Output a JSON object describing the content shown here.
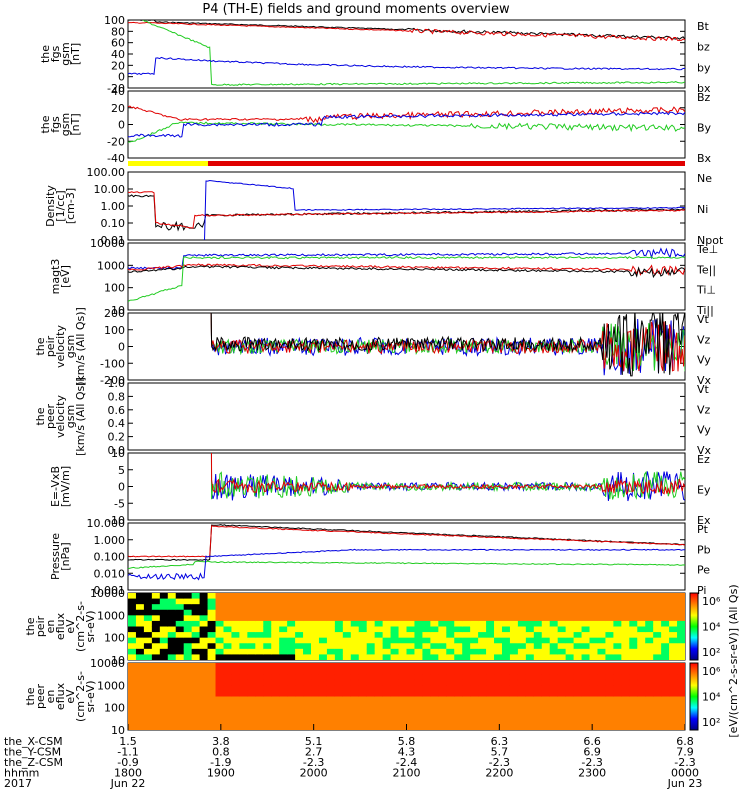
{
  "title": "P4 (TH-E) fields and ground moments overview",
  "colors": {
    "black": "#000000",
    "red": "#e00000",
    "green": "#22cc22",
    "blue": "#0000e0",
    "yellow": "#ffff00"
  },
  "chart_data": {
    "type": "line",
    "time_ticks": [
      "1800",
      "1900",
      "2000",
      "2100",
      "2200",
      "2300",
      "0000"
    ],
    "time_range": [
      "1800",
      "0000"
    ],
    "bottom_rows": [
      {
        "label": "the_X-CSM",
        "values": [
          "1.5",
          "3.8",
          "5.1",
          "5.8",
          "6.3",
          "6.6",
          "6.8"
        ]
      },
      {
        "label": "the_Y-CSM",
        "values": [
          "-1.1",
          "0.8",
          "2.7",
          "4.3",
          "5.7",
          "6.9",
          "7.9"
        ]
      },
      {
        "label": "the_Z-CSM",
        "values": [
          "-0.9",
          "-1.9",
          "-2.3",
          "-2.4",
          "-2.3",
          "-2.3",
          "-2.3"
        ]
      },
      {
        "label": "hhmm",
        "values": [
          "1800",
          "1900",
          "2000",
          "2100",
          "2200",
          "2300",
          "0000"
        ]
      },
      {
        "label": "2017",
        "values": [
          "Jun 22",
          "",
          "",
          "",
          "",
          "",
          "Jun 23"
        ]
      }
    ],
    "panels": [
      {
        "id": "fgs",
        "ylabel": [
          "the",
          "fgs",
          "gsm",
          "[nT]"
        ],
        "ticks": [
          "100",
          "80",
          "60",
          "40",
          "20",
          "0",
          "-20"
        ],
        "legend": [
          {
            "text": "Bt",
            "color": "black"
          },
          {
            "text": "bz",
            "color": "red"
          },
          {
            "text": "by",
            "color": "green"
          },
          {
            "text": "bx",
            "color": "blue"
          }
        ]
      },
      {
        "id": "fgs2",
        "ylabel": [
          "the",
          "fgs",
          "gsm",
          "[nT]"
        ],
        "ticks": [
          "40",
          "20",
          "0",
          "-20",
          "-40"
        ],
        "legend": [
          {
            "text": "Bz",
            "color": "red"
          },
          {
            "text": "By",
            "color": "green"
          },
          {
            "text": "Bx",
            "color": "blue"
          }
        ]
      },
      {
        "id": "density",
        "ylabel": [
          "Density",
          "[1/cc]",
          "[cm-3]"
        ],
        "ticks": [
          "100.00",
          "10.00",
          "1.00",
          "0.10",
          "0.01"
        ],
        "legend": [
          {
            "text": "Ne",
            "color": "red"
          },
          {
            "text": "Ni",
            "color": "black"
          },
          {
            "text": "Npot",
            "color": "blue"
          }
        ]
      },
      {
        "id": "temp",
        "ylabel": [
          "magt3",
          "[eV]"
        ],
        "ticks": [
          "10000",
          "1000",
          "100",
          "10"
        ],
        "legend": [
          {
            "text": "Te⊥",
            "color": "red"
          },
          {
            "text": "Te||",
            "color": "black"
          },
          {
            "text": "Ti⊥",
            "color": "red"
          },
          {
            "text": "Ti||",
            "color": "green"
          }
        ]
      },
      {
        "id": "peir",
        "ylabel": [
          "the",
          "peir",
          "velocity",
          "gsm",
          "[km/s (All Qs)]"
        ],
        "ticks": [
          "200",
          "100",
          "0",
          "-100",
          "-200"
        ],
        "legend": [
          {
            "text": "Vt",
            "color": "black"
          },
          {
            "text": "Vz",
            "color": "red"
          },
          {
            "text": "Vy",
            "color": "green"
          },
          {
            "text": "Vx",
            "color": "blue"
          }
        ]
      },
      {
        "id": "peer",
        "ylabel": [
          "the",
          "peer",
          "velocity",
          "gsm",
          "[km/s (All Qs)]"
        ],
        "ticks": [
          "1.0",
          "0.8",
          "0.6",
          "0.4",
          "0.2",
          "0.0"
        ],
        "legend": [
          {
            "text": "Vt",
            "color": "black"
          },
          {
            "text": "Vz",
            "color": "red"
          },
          {
            "text": "Vy",
            "color": "green"
          },
          {
            "text": "Vx",
            "color": "blue"
          }
        ]
      },
      {
        "id": "efield",
        "ylabel": [
          "E=-VxB",
          "[mV/m]"
        ],
        "ticks": [
          "10",
          "5",
          "0",
          "-5",
          "-10"
        ],
        "legend": [
          {
            "text": "Ez",
            "color": "red"
          },
          {
            "text": "Ey",
            "color": "green"
          },
          {
            "text": "Ex",
            "color": "blue"
          }
        ]
      },
      {
        "id": "pressure",
        "ylabel": [
          "Pressure",
          "[nPa]"
        ],
        "ticks": [
          "10.000",
          "1.000",
          "0.100",
          "0.010",
          "0.001"
        ],
        "legend": [
          {
            "text": "Pt",
            "color": "black"
          },
          {
            "text": "Pb",
            "color": "red"
          },
          {
            "text": "Pe",
            "color": "green"
          },
          {
            "text": "Pi",
            "color": "blue"
          }
        ]
      },
      {
        "id": "peir_spec",
        "ylabel": [
          "the",
          "peir",
          "en",
          "eflux",
          "eV",
          "(cm^2-s-",
          "sr-eV)"
        ],
        "ticks": [
          "10000",
          "1000",
          "100",
          "10"
        ]
      },
      {
        "id": "peer_spec",
        "ylabel": [
          "the",
          "peer",
          "en",
          "eflux",
          "eV",
          "(cm^2-s-",
          "sr-eV)"
        ],
        "ticks": [
          "10000",
          "1000",
          "100",
          "10"
        ]
      }
    ],
    "colorbar": {
      "label": "[eV/(cm^2-s-sr-eV)] (All Qs)",
      "top": {
        "ticks": [
          "10⁶",
          "10⁴",
          "10²"
        ]
      },
      "bottom": {
        "ticks": [
          "10⁶",
          "10⁴",
          "10²"
        ]
      }
    }
  }
}
